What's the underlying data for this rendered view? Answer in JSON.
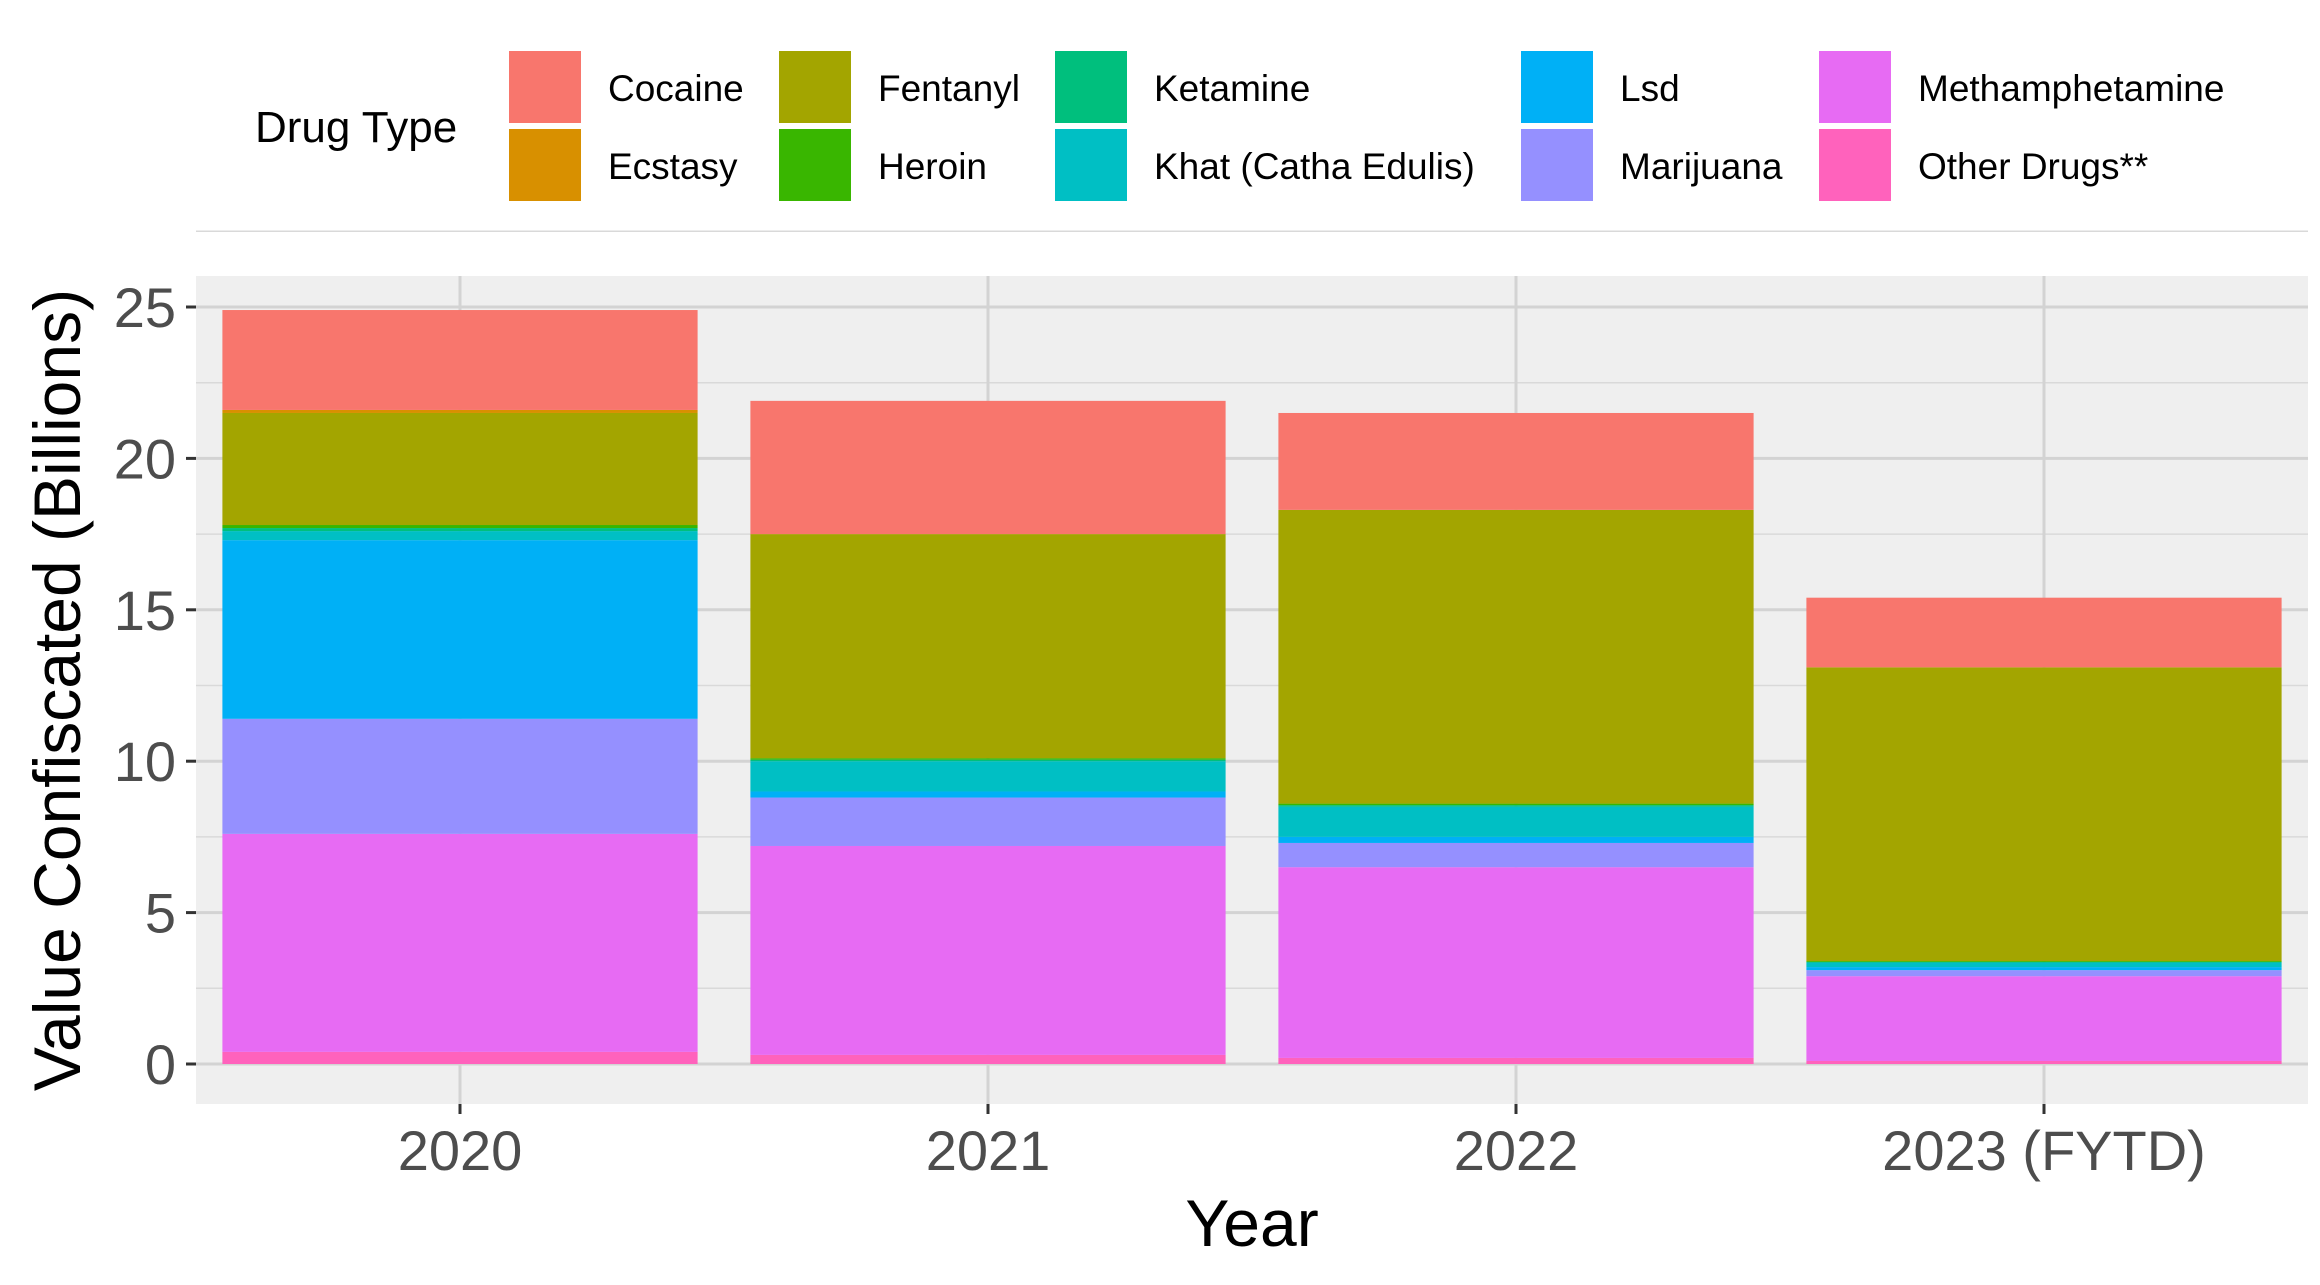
{
  "chart_data": {
    "type": "bar",
    "stacked": true,
    "xlabel": "Year",
    "ylabel": "Value Confiscated (Billions)",
    "categories": [
      "2020",
      "2021",
      "2022",
      "2023 (FYTD)"
    ],
    "ylim": [
      0,
      26.5
    ],
    "yticks": [
      0,
      5,
      10,
      15,
      20,
      25
    ],
    "grid": true,
    "legend": {
      "title": "Drug Type",
      "position": "top",
      "entries": [
        "Cocaine",
        "Ecstasy",
        "Fentanyl",
        "Heroin",
        "Ketamine",
        "Khat (Catha Edulis)",
        "Lsd",
        "Marijuana",
        "Methamphetamine",
        "Other Drugs**"
      ]
    },
    "stack_order_bottom_to_top": [
      "Other Drugs**",
      "Methamphetamine",
      "Marijuana",
      "Lsd",
      "Khat (Catha Edulis)",
      "Ketamine",
      "Heroin",
      "Fentanyl",
      "Ecstasy",
      "Cocaine"
    ],
    "series": [
      {
        "name": "Cocaine",
        "color": "#F8766D",
        "values": [
          3.3,
          4.4,
          3.2,
          2.3
        ]
      },
      {
        "name": "Ecstasy",
        "color": "#D89000",
        "values": [
          0.1,
          0.0,
          0.0,
          0.0
        ]
      },
      {
        "name": "Fentanyl",
        "color": "#A3A500",
        "values": [
          3.7,
          7.4,
          9.7,
          9.7
        ]
      },
      {
        "name": "Heroin",
        "color": "#39B600",
        "values": [
          0.1,
          0.05,
          0.05,
          0.03
        ]
      },
      {
        "name": "Ketamine",
        "color": "#00BF7D",
        "values": [
          0.1,
          0.05,
          0.05,
          0.02
        ]
      },
      {
        "name": "Khat (Catha Edulis)",
        "color": "#00BFC4",
        "values": [
          0.3,
          1.0,
          1.0,
          0.15
        ]
      },
      {
        "name": "Lsd",
        "color": "#00B0F6",
        "values": [
          5.9,
          0.2,
          0.2,
          0.1
        ]
      },
      {
        "name": "Marijuana",
        "color": "#9590FF",
        "values": [
          3.8,
          1.6,
          0.8,
          0.2
        ]
      },
      {
        "name": "Methamphetamine",
        "color": "#E76BF3",
        "values": [
          7.2,
          6.9,
          6.3,
          2.8
        ]
      },
      {
        "name": "Other Drugs**",
        "color": "#FF62BC",
        "values": [
          0.4,
          0.3,
          0.2,
          0.1
        ]
      }
    ]
  }
}
